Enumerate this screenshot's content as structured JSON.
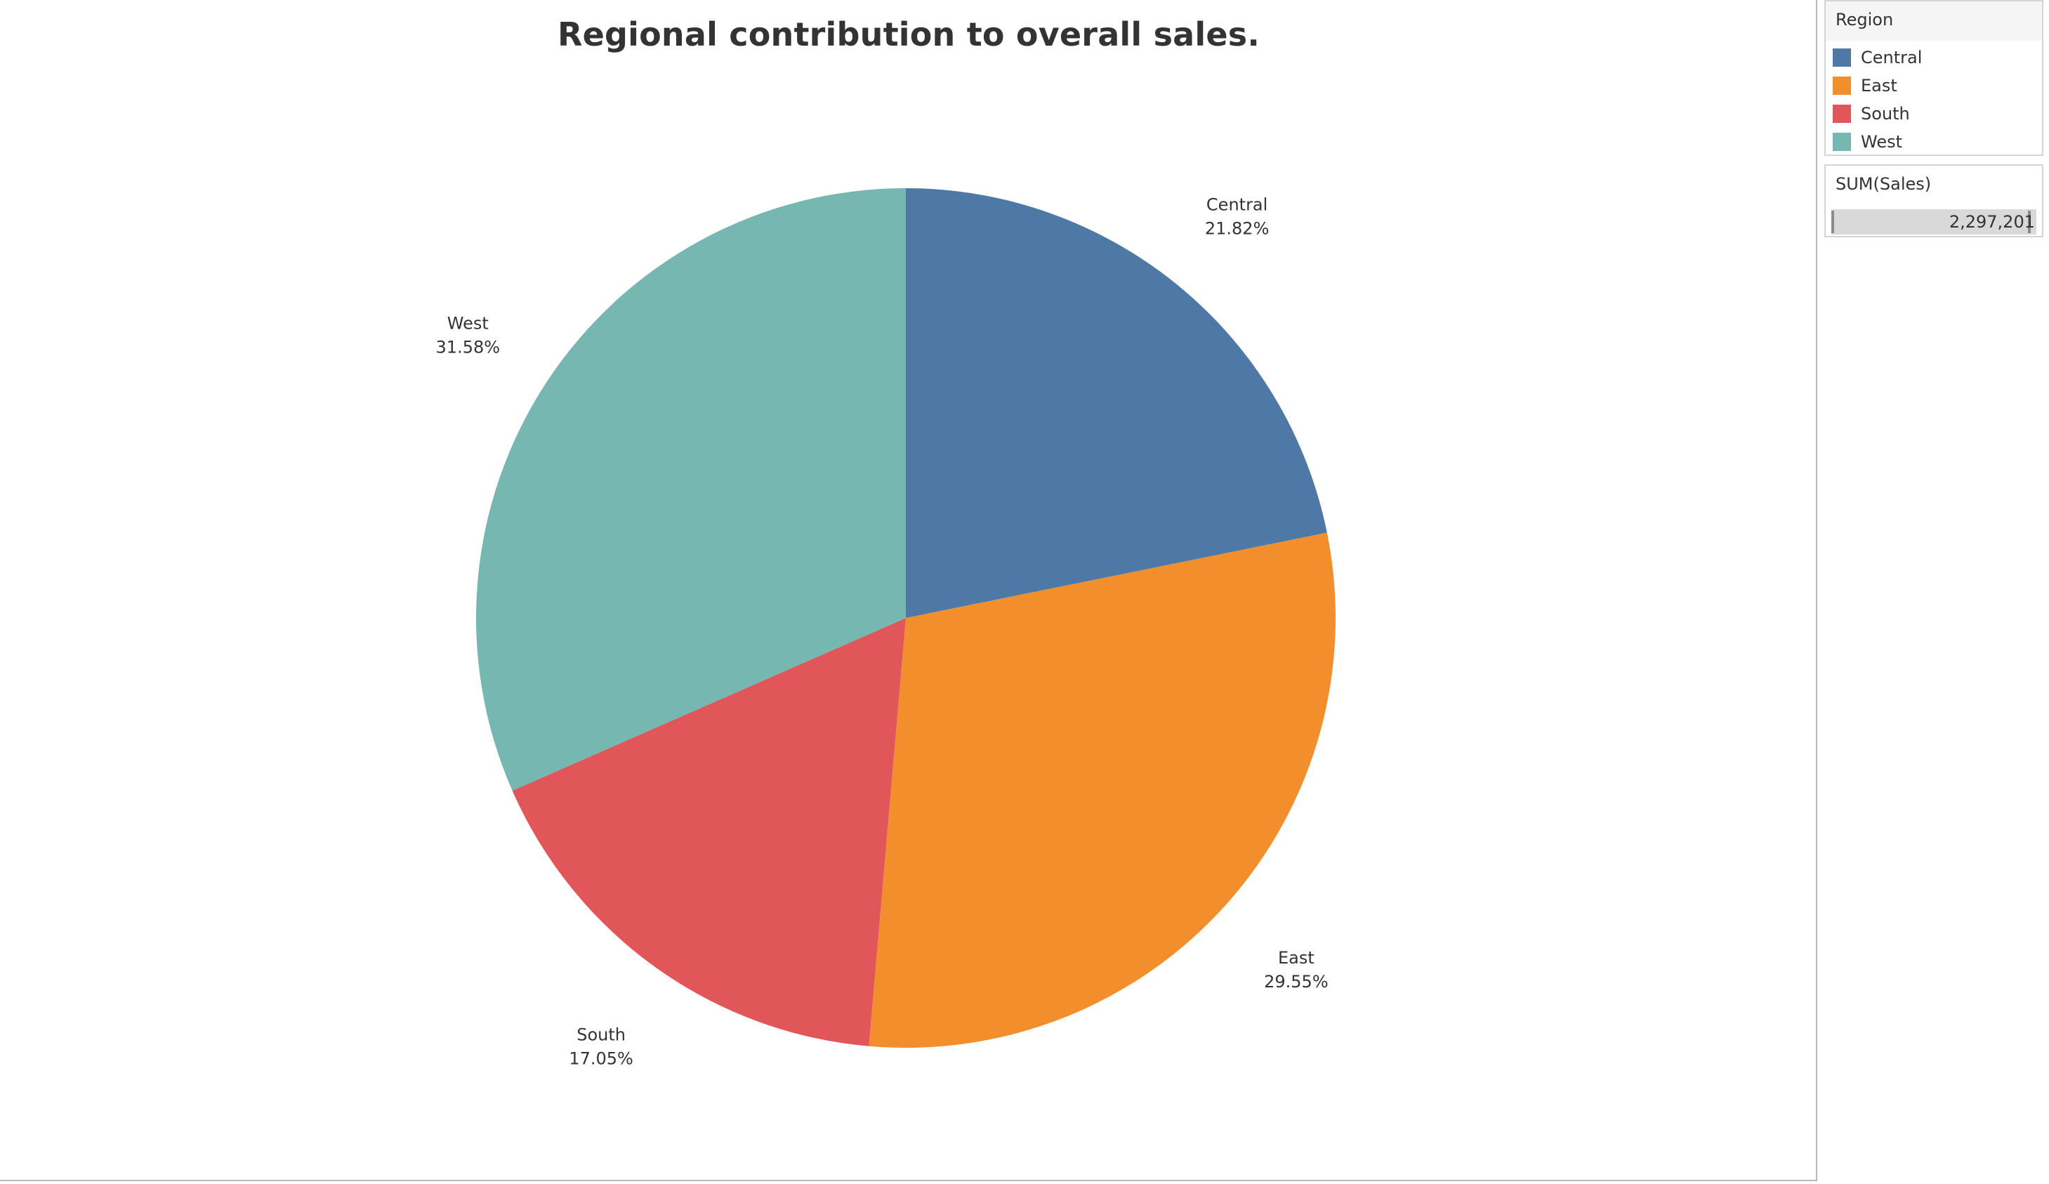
{
  "chart_data": {
    "type": "pie",
    "title": "Regional contribution to overall sales.",
    "categories": [
      "Central",
      "East",
      "South",
      "West"
    ],
    "values": [
      21.82,
      29.55,
      17.05,
      31.58
    ],
    "value_labels": [
      "21.82%",
      "29.55%",
      "17.05%",
      "31.58%"
    ],
    "colors": [
      "#4e79a7",
      "#f28e2b",
      "#e15759",
      "#76b7b2"
    ],
    "start_angle": "12 o'clock",
    "direction": "clockwise",
    "legend": {
      "title": "Region",
      "position": "right"
    },
    "size_legend": {
      "title": "SUM(Sales)",
      "value": "2,297,201"
    }
  }
}
